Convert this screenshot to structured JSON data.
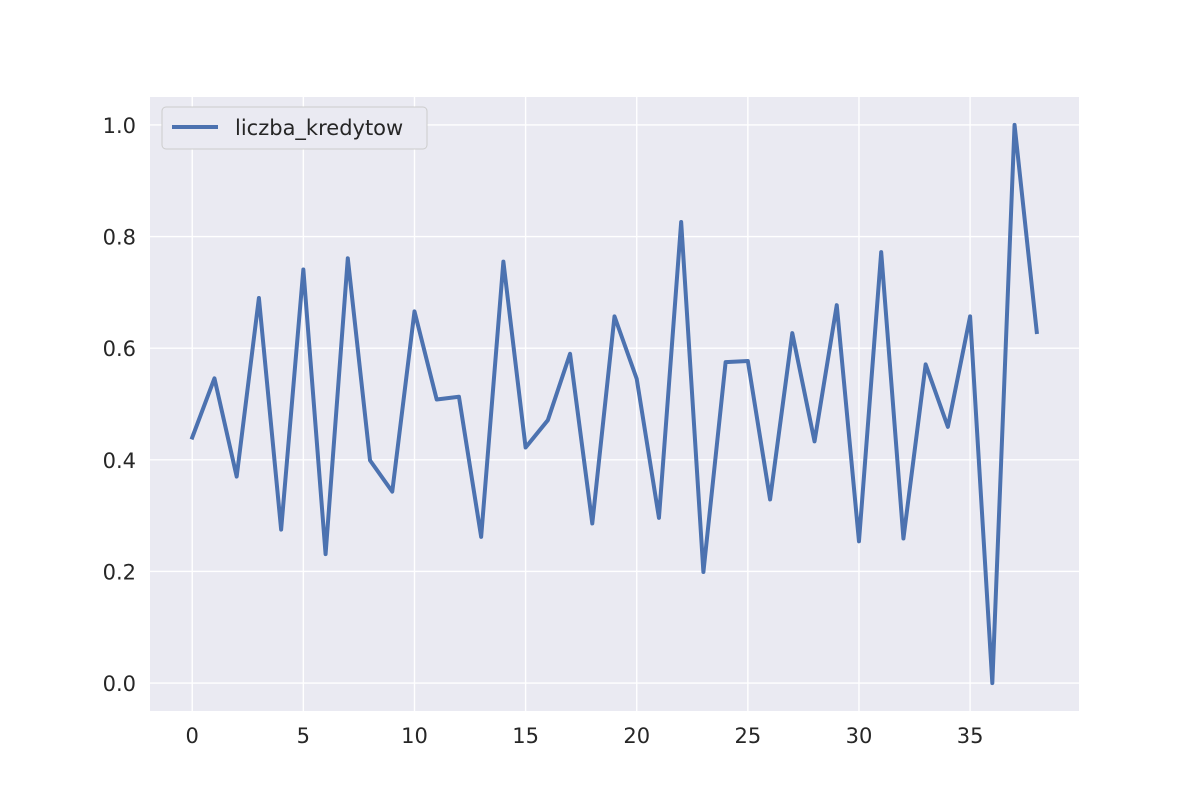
{
  "chart_data": {
    "type": "line",
    "title": "",
    "xlabel": "",
    "ylabel": "",
    "xlim": [
      -1.9,
      39.9
    ],
    "ylim": [
      -0.05,
      1.05
    ],
    "x_ticks": [
      0,
      5,
      10,
      15,
      20,
      25,
      30,
      35
    ],
    "y_ticks": [
      0.0,
      0.2,
      0.4,
      0.6,
      0.8,
      1.0
    ],
    "x_tick_labels": [
      "0",
      "5",
      "10",
      "15",
      "20",
      "25",
      "30",
      "35"
    ],
    "y_tick_labels": [
      "0.0",
      "0.2",
      "0.4",
      "0.6",
      "0.8",
      "1.0"
    ],
    "grid": true,
    "legend_position": "top-left",
    "colors": {
      "background": "#eaeaf2",
      "grid": "#ffffff",
      "line": "#4c72b0"
    },
    "series": [
      {
        "name": "liczba_kredytow",
        "x": [
          0,
          1,
          2,
          3,
          4,
          5,
          6,
          7,
          8,
          9,
          10,
          11,
          12,
          13,
          14,
          15,
          16,
          17,
          18,
          19,
          20,
          21,
          22,
          23,
          24,
          25,
          26,
          27,
          28,
          29,
          30,
          31,
          32,
          33,
          34,
          35,
          36,
          37,
          38
        ],
        "values": [
          0.44,
          0.546,
          0.37,
          0.69,
          0.275,
          0.741,
          0.231,
          0.761,
          0.399,
          0.343,
          0.666,
          0.508,
          0.513,
          0.262,
          0.755,
          0.422,
          0.471,
          0.59,
          0.286,
          0.657,
          0.545,
          0.296,
          0.826,
          0.199,
          0.575,
          0.577,
          0.329,
          0.627,
          0.433,
          0.677,
          0.254,
          0.772,
          0.259,
          0.571,
          0.459,
          0.657,
          0.0,
          1.0,
          0.629
        ]
      }
    ]
  }
}
